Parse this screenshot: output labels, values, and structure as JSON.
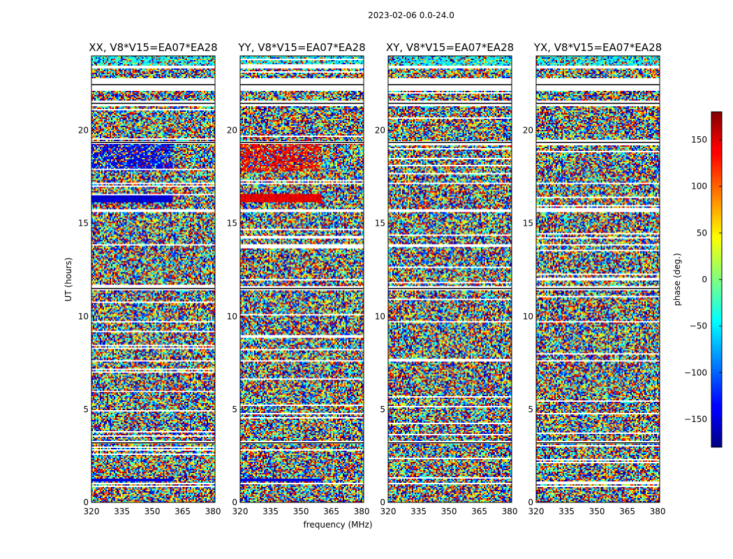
{
  "chart_data": {
    "type": "heatmap",
    "suptitle": "2023-02-06 0.0-24.0",
    "xlabel": "frequency (MHz)",
    "ylabel": "UT (hours)",
    "xlim": [
      320,
      381
    ],
    "ylim": [
      0,
      24
    ],
    "xticks": [
      "320",
      "335",
      "350",
      "365",
      "380"
    ],
    "yticks": [
      "0",
      "5",
      "10",
      "15",
      "20"
    ],
    "panels": [
      {
        "title": "XX, V8*V15=EA07*EA28"
      },
      {
        "title": "YY, V8*V15=EA07*EA28"
      },
      {
        "title": "XY, V8*V15=EA07*EA28"
      },
      {
        "title": "YX, V8*V15=EA07*EA28"
      }
    ],
    "colorbar": {
      "label": "phase (deg.)",
      "range": [
        -180,
        180
      ],
      "ticks": [
        "150",
        "100",
        "50",
        "0",
        "−50",
        "−100",
        "−150"
      ],
      "colormap": "jet"
    },
    "flagged_rows_hours": [
      [
        0.95,
        1.05
      ],
      [
        3.15,
        3.3
      ],
      [
        7.55,
        7.65
      ],
      [
        11.4,
        11.6
      ],
      [
        13.8,
        13.9
      ],
      [
        15.6,
        15.75
      ],
      [
        17.1,
        17.2
      ],
      [
        19.3,
        19.45
      ],
      [
        21.3,
        21.6
      ],
      [
        22.1,
        22.8
      ],
      [
        23.3,
        23.5
      ]
    ]
  }
}
